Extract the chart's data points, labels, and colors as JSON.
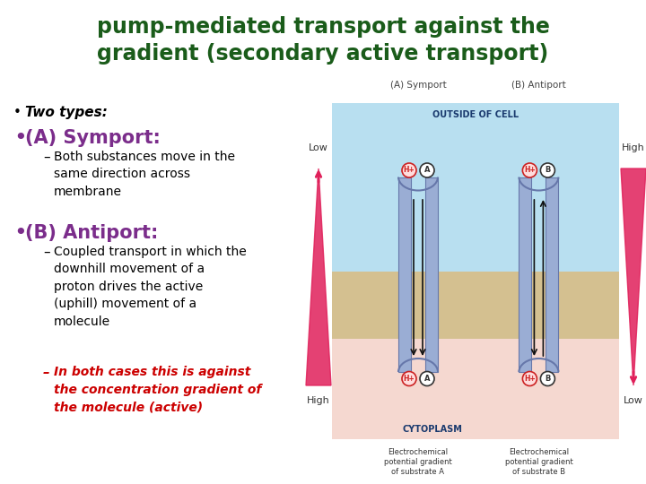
{
  "title_line1": "pump-mediated transport against the",
  "title_line2": "gradient (secondary active transport)",
  "title_color": "#1a5c1a",
  "title_fontsize": 17,
  "background_color": "#ffffff",
  "bullet1_text": "Two types:",
  "bullet1_color": "#000000",
  "bullet2_text": "(A) Symport",
  "bullet2_color": "#7b2d8b",
  "bullet2_fontsize": 15,
  "sub2_text": "Both substances move in the\nsame direction across\nmembrane",
  "sub2_color": "#000000",
  "bullet3_text": "(B) Antiport",
  "bullet3_color": "#7b2d8b",
  "bullet3_fontsize": 15,
  "sub3a_text": "Coupled transport in which the\ndownhill movement of a\nproton drives the active\n(uphill) movement of a\nmolecule",
  "sub3a_color": "#000000",
  "sub3b_line1": "In both cases this is against",
  "sub3b_line2": "the concentration gradient of",
  "sub3b_line3": "the molecule (active)",
  "sub3b_color": "#cc0000",
  "outside_color": "#b8dff0",
  "cyto_color": "#f5d8d0",
  "membrane_color": "#d4c090",
  "channel_color": "#9aadd4",
  "channel_edge": "#6677aa",
  "arrow_color": "#e0205a",
  "mol_edge_color": "#cc2222",
  "mol_h_color": "#ffdddd",
  "mol_a_color": "#ffffff",
  "text_label_color": "#333333",
  "fig_width": 7.2,
  "fig_height": 5.4,
  "dpi": 100
}
